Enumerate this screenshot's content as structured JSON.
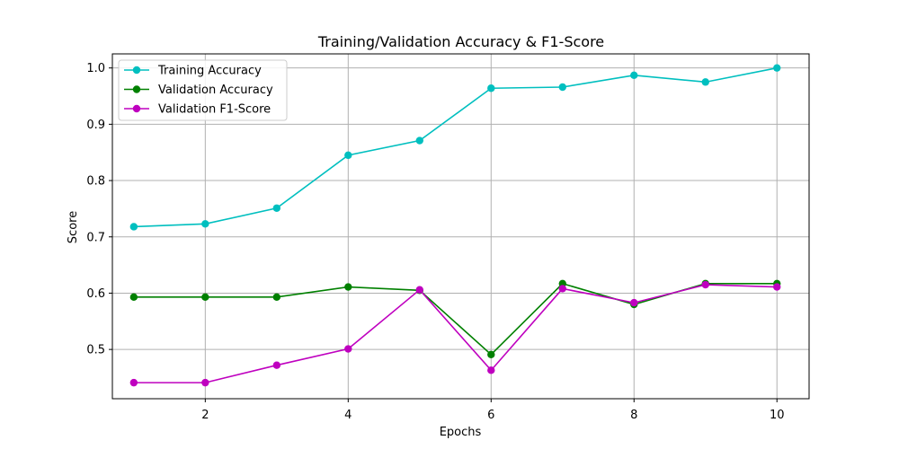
{
  "chart_data": {
    "type": "line",
    "title": "Training/Validation Accuracy & F1-Score",
    "xlabel": "Epochs",
    "ylabel": "Score",
    "x": [
      1,
      2,
      3,
      4,
      5,
      6,
      7,
      8,
      9,
      10
    ],
    "xlim": [
      0.7,
      10.45
    ],
    "ylim": [
      0.4125,
      1.025
    ],
    "xticks": [
      2,
      4,
      6,
      8,
      10
    ],
    "yticks": [
      0.5,
      0.6,
      0.7,
      0.8,
      0.9,
      1.0
    ],
    "xtick_labels": [
      "2",
      "4",
      "6",
      "8",
      "10"
    ],
    "ytick_labels": [
      "0.5",
      "0.6",
      "0.7",
      "0.8",
      "0.9",
      "1.0"
    ],
    "grid": true,
    "legend_position": "top-left",
    "series": [
      {
        "name": "Training Accuracy",
        "color": "#00bfbf",
        "marker": "circle",
        "values": [
          0.718,
          0.723,
          0.751,
          0.845,
          0.871,
          0.964,
          0.966,
          0.987,
          0.975,
          1.0
        ]
      },
      {
        "name": "Validation Accuracy",
        "color": "#008000",
        "marker": "circle",
        "values": [
          0.593,
          0.593,
          0.593,
          0.611,
          0.605,
          0.491,
          0.617,
          0.58,
          0.617,
          0.617
        ]
      },
      {
        "name": "Validation F1-Score",
        "color": "#bf00bf",
        "marker": "circle",
        "values": [
          0.441,
          0.441,
          0.472,
          0.501,
          0.606,
          0.463,
          0.608,
          0.583,
          0.615,
          0.611
        ]
      }
    ]
  }
}
